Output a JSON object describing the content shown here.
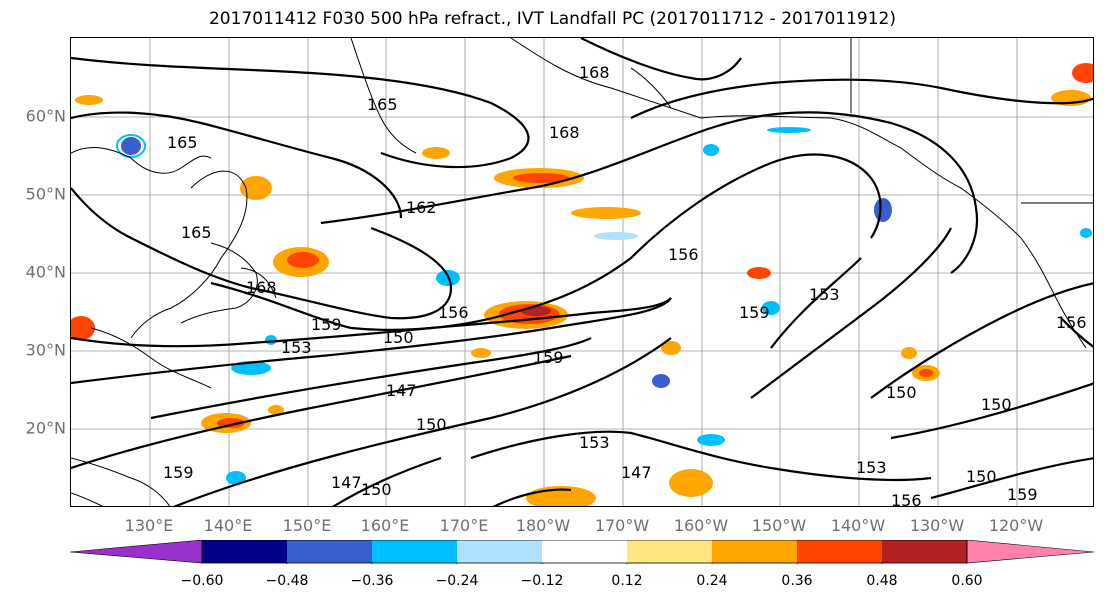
{
  "title": "2017011412 F030 500 hPa refract., IVT Landfall PC (2017011712 - 2017011912)",
  "map": {
    "lat_labels": [
      "60°N",
      "50°N",
      "40°N",
      "30°N",
      "20°N"
    ],
    "lon_labels": [
      "130°E",
      "140°E",
      "150°E",
      "160°E",
      "170°E",
      "180°W",
      "170°W",
      "160°W",
      "150°W",
      "140°W",
      "130°W",
      "120°W"
    ],
    "contour_labels": [
      "168",
      "165",
      "168",
      "165",
      "162",
      "165",
      "168",
      "156",
      "159",
      "153",
      "159",
      "153",
      "156",
      "150",
      "159",
      "147",
      "150",
      "153",
      "147",
      "150",
      "153",
      "156",
      "150",
      "150",
      "159",
      "156",
      "150",
      "147",
      "159"
    ]
  },
  "colorbar": {
    "ticks": [
      "−0.60",
      "−0.48",
      "−0.36",
      "−0.24",
      "−0.12",
      "0.12",
      "0.24",
      "0.36",
      "0.48",
      "0.60"
    ],
    "colors": [
      "#9932cc",
      "#00008b",
      "#3a5fcd",
      "#00bfff",
      "#b0e2ff",
      "#ffffff",
      "#ffe680",
      "#ffa500",
      "#ff4500",
      "#b22222",
      "#ff82ab"
    ]
  }
}
